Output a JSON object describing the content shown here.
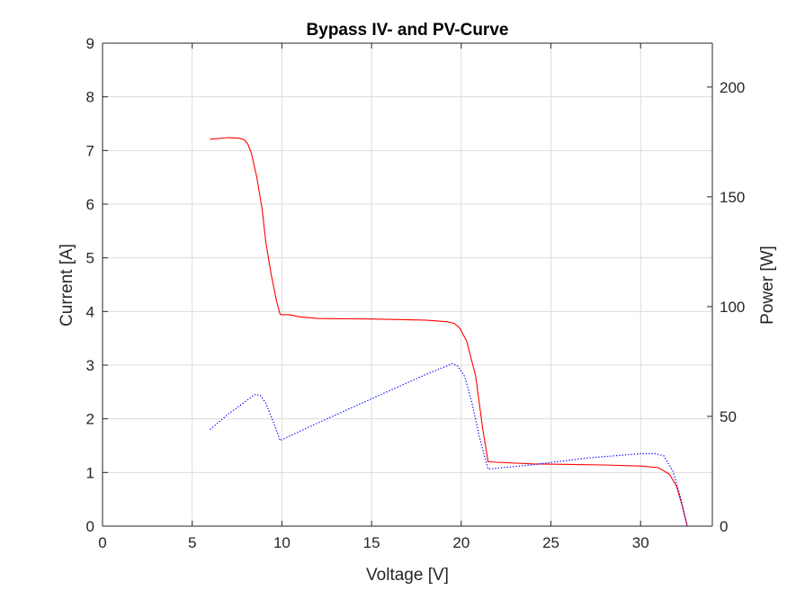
{
  "chart_data": {
    "type": "line",
    "title": "Bypass IV- and PV-Curve",
    "xlabel": "Voltage [V]",
    "ylabel_left": "Current [A]",
    "ylabel_right": "Power [W]",
    "xlim": [
      0,
      34
    ],
    "ylim_left": [
      0,
      9
    ],
    "ylim_right": [
      0,
      220
    ],
    "x_ticks": [
      0,
      5,
      10,
      15,
      20,
      25,
      30
    ],
    "y_ticks_left": [
      0,
      1,
      2,
      3,
      4,
      5,
      6,
      7,
      8,
      9
    ],
    "y_ticks_right": [
      0,
      50,
      100,
      150,
      200
    ],
    "grid": true,
    "colors": {
      "current": "#ff0000",
      "power": "#0000ff",
      "grid": "#dcdcdc",
      "axis": "#262626"
    },
    "series": [
      {
        "axis": "left",
        "style": "solid",
        "x": [
          6.0,
          7.0,
          7.6,
          7.9,
          8.1,
          8.3,
          8.6,
          8.9,
          9.1,
          9.4,
          9.7,
          9.9,
          10.0,
          10.4,
          11.0,
          12.0,
          15.0,
          18.0,
          19.2,
          19.6,
          19.9,
          20.3,
          20.8,
          21.2,
          21.5,
          22.0,
          24.0,
          28.0,
          30.0,
          31.0,
          31.6,
          32.0,
          32.3,
          32.6
        ],
        "y": [
          7.21,
          7.24,
          7.23,
          7.2,
          7.12,
          6.95,
          6.5,
          5.9,
          5.3,
          4.7,
          4.2,
          3.95,
          3.94,
          3.94,
          3.9,
          3.87,
          3.86,
          3.84,
          3.81,
          3.78,
          3.7,
          3.45,
          2.8,
          1.8,
          1.2,
          1.19,
          1.16,
          1.14,
          1.12,
          1.09,
          0.97,
          0.75,
          0.4,
          0.0
        ]
      },
      {
        "axis": "right",
        "style": "dotted",
        "x": [
          6.0,
          7.0,
          8.0,
          8.5,
          8.8,
          9.1,
          9.5,
          9.9,
          12.0,
          15.0,
          18.0,
          19.5,
          19.8,
          20.2,
          20.6,
          21.0,
          21.5,
          24.0,
          27.0,
          30.0,
          30.8,
          31.3,
          31.8,
          32.2,
          32.6
        ],
        "y": [
          44,
          51,
          57,
          60,
          59.5,
          56,
          48,
          39,
          47,
          58,
          69,
          74,
          73,
          68,
          56,
          41,
          26,
          28,
          31,
          33,
          33,
          32,
          25,
          14,
          0
        ]
      }
    ]
  }
}
